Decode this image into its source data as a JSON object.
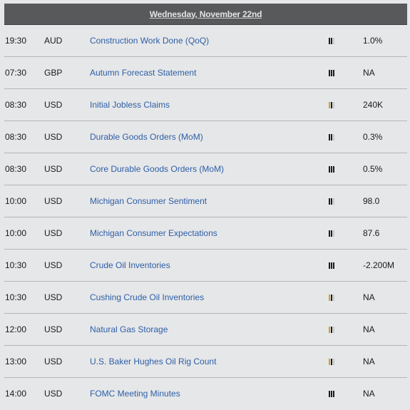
{
  "header": {
    "date": "Wednesday, November 22nd"
  },
  "colors": {
    "header_bg": "#58595b",
    "link": "#2d5fa6",
    "page_bg": "#e6e7e9",
    "impact_high": "#1c1c1c",
    "impact_medium": "#d9a21b"
  },
  "events": [
    {
      "time": "19:30",
      "currency": "AUD",
      "event": "Construction Work Done (QoQ)",
      "impact": "medium",
      "value": "1.0%"
    },
    {
      "time": "07:30",
      "currency": "GBP",
      "event": "Autumn Forecast Statement",
      "impact": "high",
      "value": "NA"
    },
    {
      "time": "08:30",
      "currency": "USD",
      "event": "Initial Jobless Claims",
      "impact": "low",
      "value": "240K"
    },
    {
      "time": "08:30",
      "currency": "USD",
      "event": "Durable Goods Orders (MoM)",
      "impact": "medium",
      "value": "0.3%"
    },
    {
      "time": "08:30",
      "currency": "USD",
      "event": "Core Durable Goods Orders (MoM)",
      "impact": "high",
      "value": "0.5%"
    },
    {
      "time": "10:00",
      "currency": "USD",
      "event": "Michigan Consumer Sentiment",
      "impact": "medium",
      "value": "98.0"
    },
    {
      "time": "10:00",
      "currency": "USD",
      "event": "Michigan Consumer Expectations",
      "impact": "medium",
      "value": "87.6"
    },
    {
      "time": "10:30",
      "currency": "USD",
      "event": "Crude Oil Inventories",
      "impact": "high",
      "value": "-2.200M"
    },
    {
      "time": "10:30",
      "currency": "USD",
      "event": "Cushing Crude Oil Inventories",
      "impact": "low",
      "value": "NA"
    },
    {
      "time": "12:00",
      "currency": "USD",
      "event": "Natural Gas Storage",
      "impact": "low",
      "value": "NA"
    },
    {
      "time": "13:00",
      "currency": "USD",
      "event": "U.S. Baker Hughes Oil Rig Count",
      "impact": "low",
      "value": "NA"
    },
    {
      "time": "14:00",
      "currency": "USD",
      "event": "FOMC Meeting Minutes",
      "impact": "high",
      "value": "NA"
    }
  ]
}
